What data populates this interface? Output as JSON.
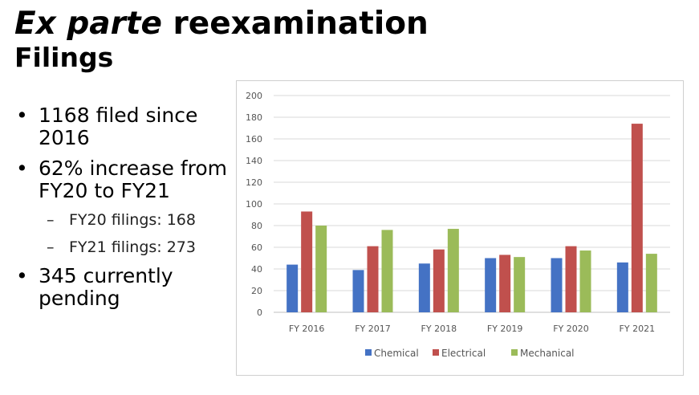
{
  "slide": {
    "title_italic": "Ex parte",
    "title_rest": "reexamination",
    "subtitle": "Filings"
  },
  "bullets": [
    {
      "level": 1,
      "text": "1168 filed since 2016"
    },
    {
      "level": 1,
      "text": "62% increase from FY20 to FY21"
    },
    {
      "level": 2,
      "text": "FY20 filings: 168"
    },
    {
      "level": 2,
      "text": "FY21 filings: 273"
    },
    {
      "level": 1,
      "text": "345 currently pending"
    }
  ],
  "chart_data": {
    "type": "bar",
    "categories": [
      "FY 2016",
      "FY 2017",
      "FY 2018",
      "FY 2019",
      "FY 2020",
      "FY 2021"
    ],
    "series": [
      {
        "name": "Chemical",
        "color": "#4472c4",
        "values": [
          44,
          39,
          45,
          50,
          50,
          46
        ]
      },
      {
        "name": "Electrical",
        "color": "#c0504d",
        "values": [
          93,
          61,
          58,
          53,
          61,
          174
        ]
      },
      {
        "name": "Mechanical",
        "color": "#9bbb59",
        "values": [
          80,
          76,
          77,
          51,
          57,
          54
        ]
      }
    ],
    "ylim": [
      0,
      200
    ],
    "yticks": [
      0,
      20,
      40,
      60,
      80,
      100,
      120,
      140,
      160,
      180,
      200
    ],
    "grid": true,
    "legend": "bottom"
  }
}
